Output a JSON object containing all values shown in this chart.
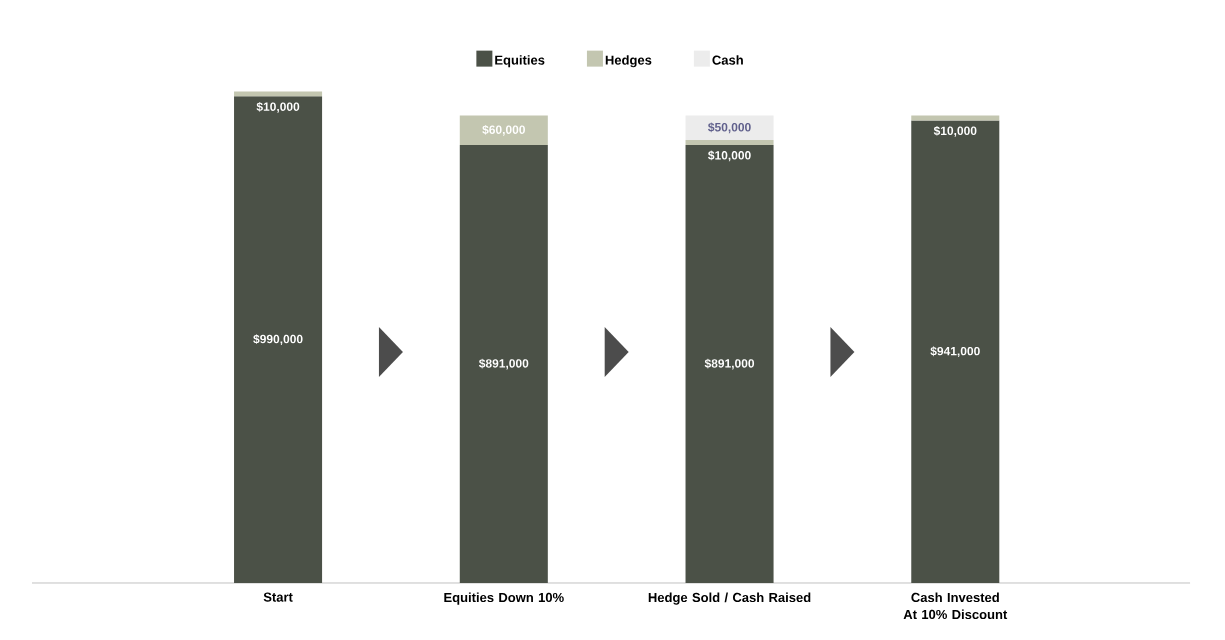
{
  "chart_data": {
    "type": "bar",
    "stacked": true,
    "legend": "top",
    "categories": [
      "Start",
      "Equities Down 10%",
      "Hedge Sold / Cash Raised",
      "Cash Invested At 10% Discount"
    ],
    "series": [
      {
        "name": "Equities",
        "color": "#4b5147",
        "values": [
          990000,
          891000,
          891000,
          941000
        ],
        "value_labels": [
          "$990,000",
          "$891,000",
          "$891,000",
          "$941,000"
        ]
      },
      {
        "name": "Hedges",
        "color": "#c3c6b0",
        "values": [
          10000,
          60000,
          10000,
          10000
        ],
        "value_labels": [
          "$10,000",
          "$60,000",
          "$10,000",
          "$10,000"
        ]
      },
      {
        "name": "Cash",
        "color": "#ececec",
        "values": [
          null,
          null,
          50000,
          null
        ],
        "value_labels": [
          null,
          null,
          "$50,000",
          null
        ]
      }
    ]
  }
}
